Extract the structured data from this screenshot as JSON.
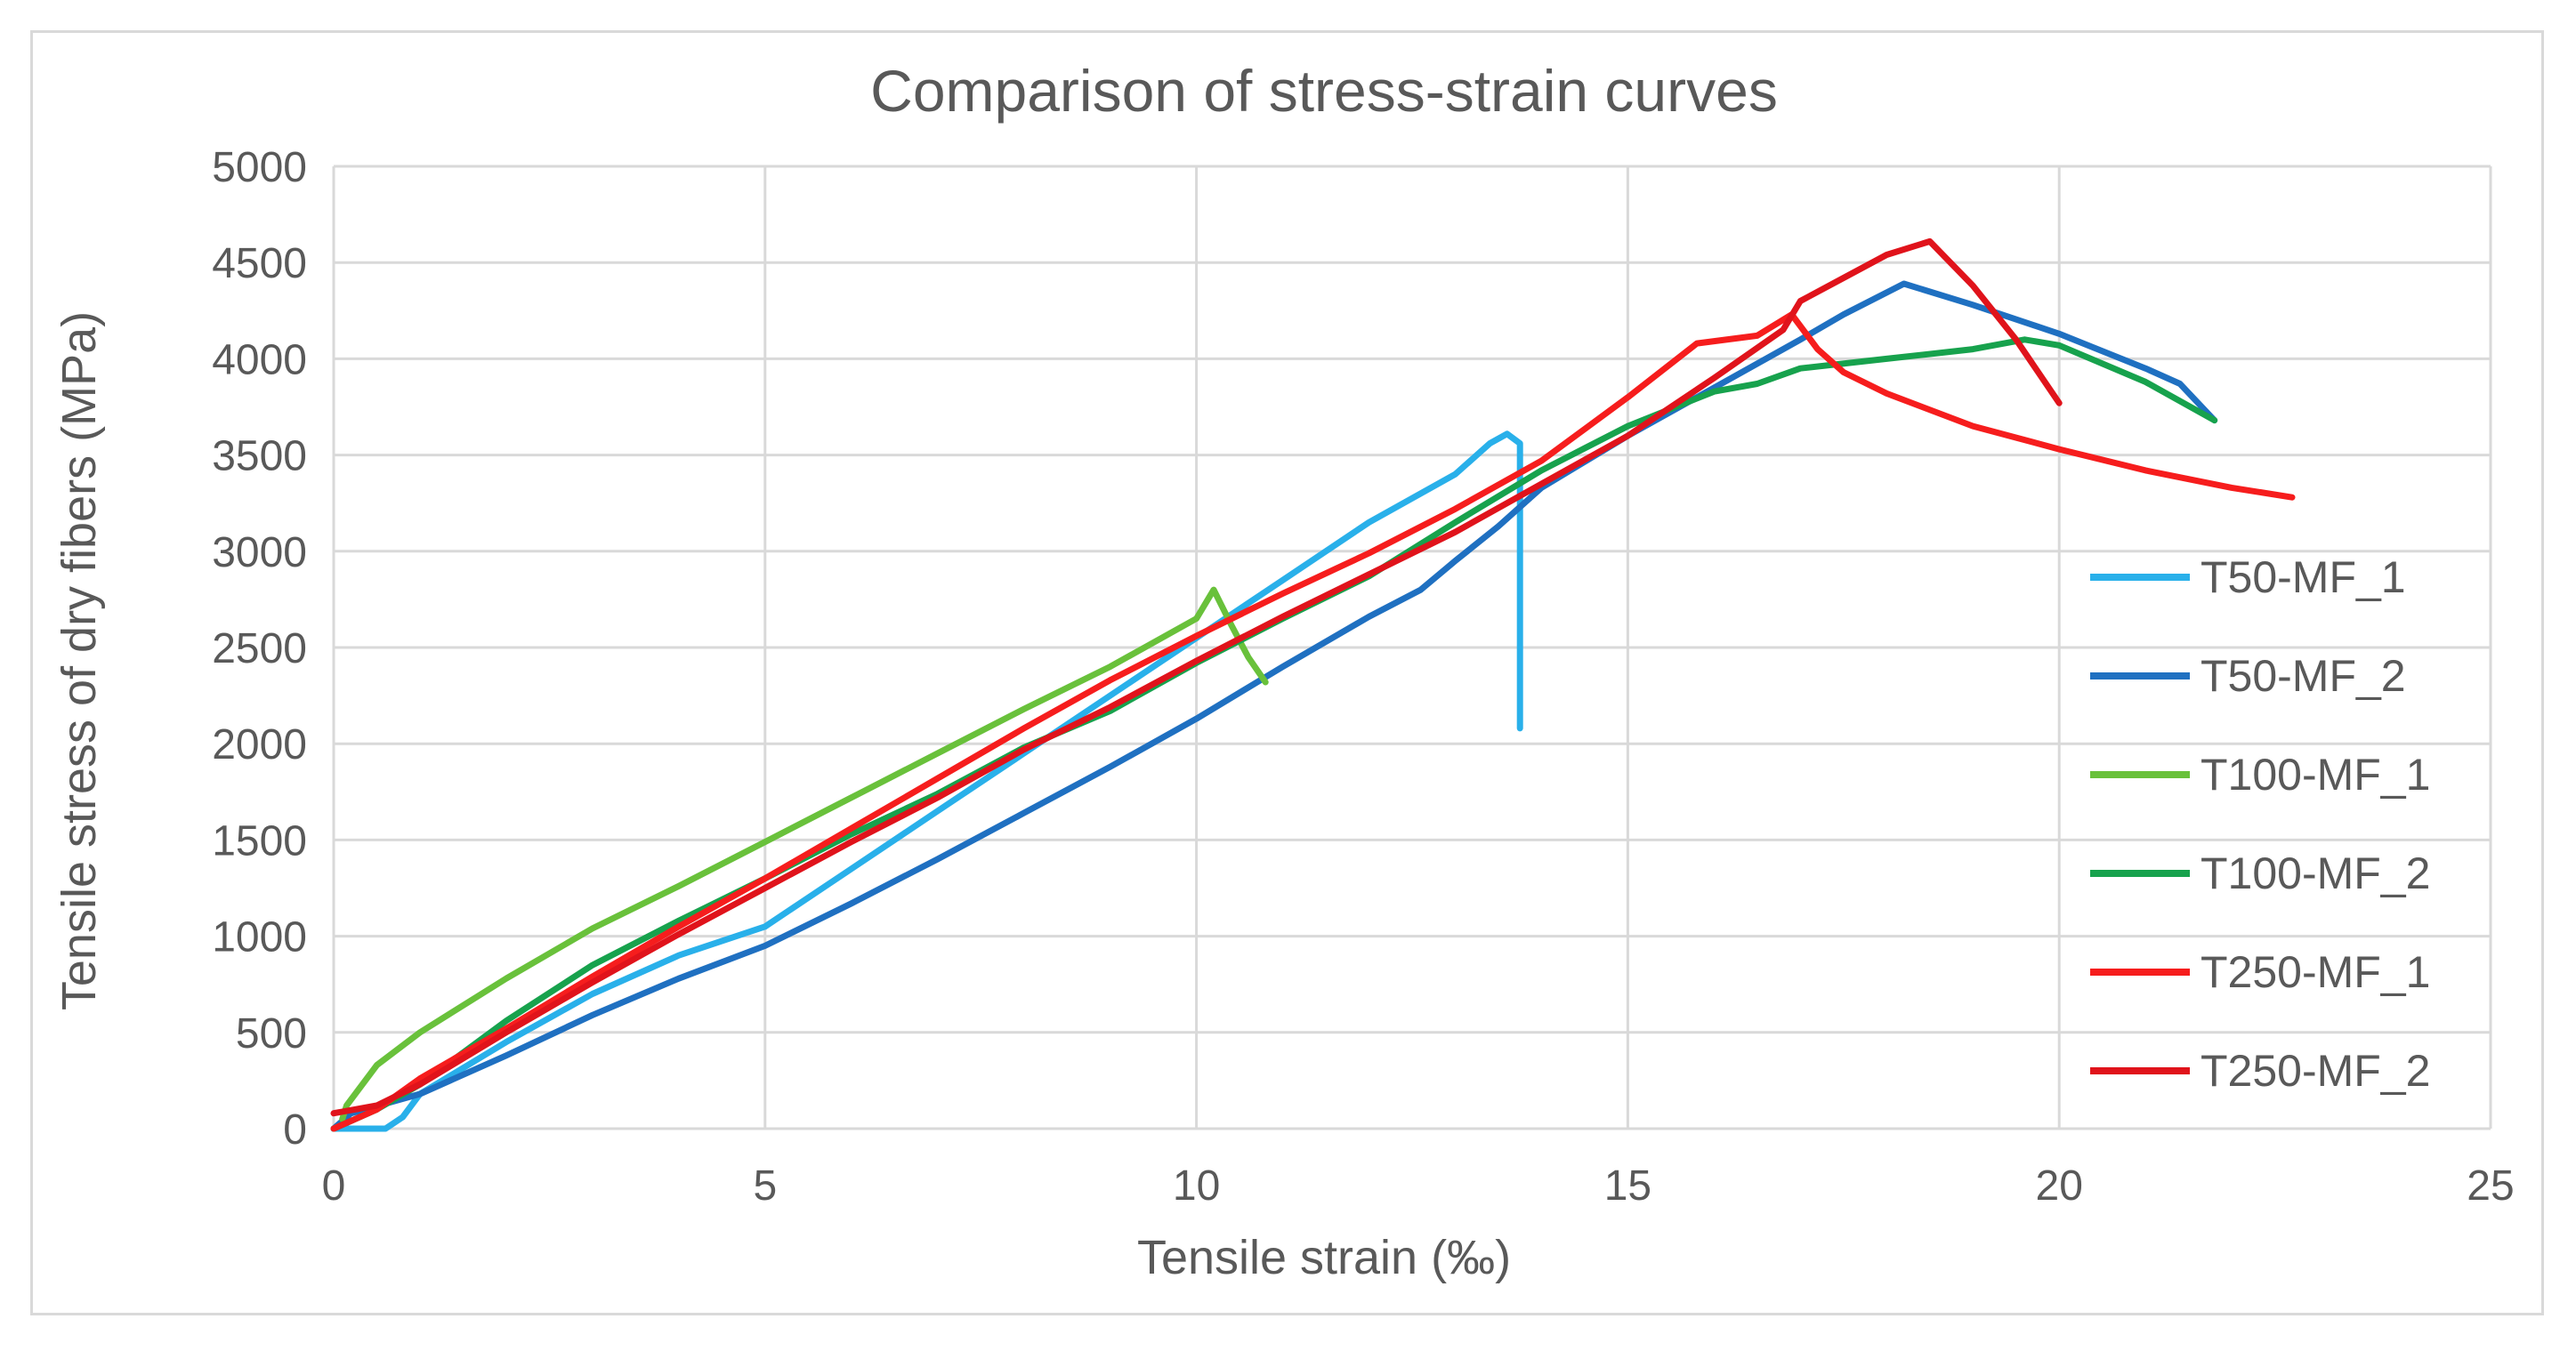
{
  "chart_data": {
    "type": "line",
    "title": "Comparison of stress-strain curves",
    "xlabel": "Tensile strain (‰)",
    "ylabel": "Tensile stress of dry fibers (MPa)",
    "xlim": [
      0,
      25
    ],
    "ylim": [
      0,
      5000
    ],
    "xticks": [
      0,
      5,
      10,
      15,
      20,
      25
    ],
    "yticks": [
      0,
      500,
      1000,
      1500,
      2000,
      2500,
      3000,
      3500,
      4000,
      4500,
      5000
    ],
    "grid": "major both axes",
    "legend_position": "right",
    "series": [
      {
        "name": "T50-MF_1",
        "color": "#29b0ea",
        "points": [
          [
            0,
            0
          ],
          [
            0.4,
            0
          ],
          [
            0.6,
            0
          ],
          [
            0.8,
            60
          ],
          [
            1.0,
            180
          ],
          [
            2,
            450
          ],
          [
            3,
            700
          ],
          [
            4,
            900
          ],
          [
            5,
            1050
          ],
          [
            6,
            1350
          ],
          [
            7,
            1650
          ],
          [
            8,
            1950
          ],
          [
            9,
            2250
          ],
          [
            10,
            2550
          ],
          [
            11,
            2850
          ],
          [
            12,
            3150
          ],
          [
            13,
            3400
          ],
          [
            13.4,
            3560
          ],
          [
            13.6,
            3610
          ],
          [
            13.75,
            3560
          ],
          [
            13.75,
            3200
          ],
          [
            13.75,
            2080
          ]
        ]
      },
      {
        "name": "T50-MF_2",
        "color": "#1f70c1",
        "points": [
          [
            0,
            0
          ],
          [
            0.2,
            80
          ],
          [
            1,
            180
          ],
          [
            2,
            380
          ],
          [
            3,
            590
          ],
          [
            4,
            780
          ],
          [
            5,
            950
          ],
          [
            6,
            1170
          ],
          [
            7,
            1400
          ],
          [
            8,
            1640
          ],
          [
            9,
            1880
          ],
          [
            10,
            2130
          ],
          [
            11,
            2400
          ],
          [
            12,
            2660
          ],
          [
            12.6,
            2800
          ],
          [
            13,
            2950
          ],
          [
            13.5,
            3130
          ],
          [
            14,
            3330
          ],
          [
            15,
            3600
          ],
          [
            16,
            3850
          ],
          [
            17,
            4100
          ],
          [
            17.5,
            4230
          ],
          [
            18.2,
            4390
          ],
          [
            19,
            4280
          ],
          [
            20,
            4130
          ],
          [
            21,
            3950
          ],
          [
            21.4,
            3870
          ],
          [
            21.8,
            3680
          ]
        ]
      },
      {
        "name": "T100-MF_1",
        "color": "#69c13b",
        "points": [
          [
            0.1,
            50
          ],
          [
            0.15,
            120
          ],
          [
            0.5,
            330
          ],
          [
            1,
            500
          ],
          [
            2,
            780
          ],
          [
            3,
            1040
          ],
          [
            4,
            1260
          ],
          [
            5,
            1490
          ],
          [
            6,
            1720
          ],
          [
            7,
            1950
          ],
          [
            8,
            2180
          ],
          [
            9,
            2400
          ],
          [
            10,
            2650
          ],
          [
            10.2,
            2800
          ],
          [
            10.4,
            2620
          ],
          [
            10.6,
            2450
          ],
          [
            10.8,
            2320
          ]
        ]
      },
      {
        "name": "T100-MF_2",
        "color": "#17a24d",
        "points": [
          [
            0,
            0
          ],
          [
            0.5,
            100
          ],
          [
            1,
            230
          ],
          [
            2,
            560
          ],
          [
            3,
            850
          ],
          [
            4,
            1080
          ],
          [
            5,
            1300
          ],
          [
            6,
            1530
          ],
          [
            7,
            1740
          ],
          [
            8,
            1980
          ],
          [
            9,
            2170
          ],
          [
            10,
            2420
          ],
          [
            11,
            2650
          ],
          [
            12,
            2870
          ],
          [
            13,
            3150
          ],
          [
            14,
            3420
          ],
          [
            15,
            3650
          ],
          [
            16,
            3830
          ],
          [
            16.5,
            3870
          ],
          [
            17,
            3950
          ],
          [
            18,
            4000
          ],
          [
            19,
            4050
          ],
          [
            19.6,
            4100
          ],
          [
            20,
            4070
          ],
          [
            21,
            3880
          ],
          [
            21.8,
            3680
          ]
        ]
      },
      {
        "name": "T250-MF_1",
        "color": "#f61d1d",
        "points": [
          [
            0,
            0
          ],
          [
            0.5,
            100
          ],
          [
            1,
            260
          ],
          [
            2,
            520
          ],
          [
            3,
            790
          ],
          [
            4,
            1050
          ],
          [
            5,
            1300
          ],
          [
            6,
            1560
          ],
          [
            7,
            1820
          ],
          [
            8,
            2080
          ],
          [
            9,
            2330
          ],
          [
            10,
            2560
          ],
          [
            11,
            2780
          ],
          [
            12,
            2990
          ],
          [
            13,
            3220
          ],
          [
            14,
            3470
          ],
          [
            15,
            3800
          ],
          [
            15.8,
            4080
          ],
          [
            16.5,
            4120
          ],
          [
            16.9,
            4230
          ],
          [
            17.2,
            4050
          ],
          [
            17.5,
            3930
          ],
          [
            18,
            3820
          ],
          [
            19,
            3650
          ],
          [
            20,
            3530
          ],
          [
            21,
            3420
          ],
          [
            22,
            3330
          ],
          [
            22.7,
            3280
          ]
        ]
      },
      {
        "name": "T250-MF_2",
        "color": "#e0131b",
        "points": [
          [
            0,
            80
          ],
          [
            0.5,
            120
          ],
          [
            1,
            230
          ],
          [
            2,
            500
          ],
          [
            3,
            760
          ],
          [
            4,
            1010
          ],
          [
            5,
            1250
          ],
          [
            6,
            1490
          ],
          [
            7,
            1720
          ],
          [
            8,
            1970
          ],
          [
            9,
            2190
          ],
          [
            10,
            2430
          ],
          [
            11,
            2660
          ],
          [
            12,
            2880
          ],
          [
            13,
            3100
          ],
          [
            14,
            3350
          ],
          [
            15,
            3600
          ],
          [
            16,
            3900
          ],
          [
            16.8,
            4150
          ],
          [
            17,
            4300
          ],
          [
            17.5,
            4420
          ],
          [
            18,
            4540
          ],
          [
            18.5,
            4610
          ],
          [
            19,
            4380
          ],
          [
            19.5,
            4100
          ],
          [
            20,
            3770
          ]
        ]
      }
    ]
  }
}
